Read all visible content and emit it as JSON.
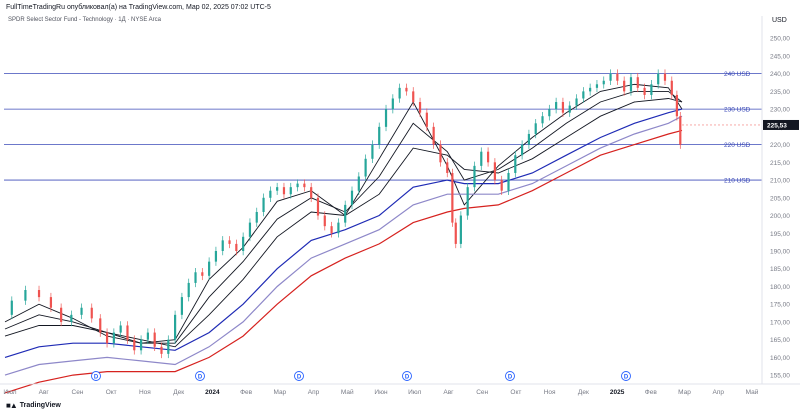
{
  "header": {
    "published_text": "FullTimeTradingRu опубликовал(а) на TradingView.com, Мар 02, 2025 07:02 UTC-5"
  },
  "chart_data": {
    "type": "line",
    "title": "SPDR Select Sector Fund - Technology · 1Д · NYSE Arca",
    "currency_label": "USD",
    "ylim": [
      152.5,
      254
    ],
    "yticks": [
      155,
      160,
      165,
      170,
      175,
      180,
      185,
      190,
      195,
      200,
      205,
      210,
      215,
      220,
      225,
      230,
      235,
      240,
      245,
      250
    ],
    "x_tick_labels": [
      "Июл",
      "Авг",
      "Сен",
      "Окт",
      "Ноя",
      "Дек",
      "2024",
      "Фев",
      "Мар",
      "Апр",
      "Май",
      "Июн",
      "Июл",
      "Авг",
      "Сен",
      "Окт",
      "Ноя",
      "Дек",
      "2025",
      "Фев",
      "Мар",
      "Апр",
      "Май"
    ],
    "event_markers": [
      "D",
      "D",
      "D",
      "D",
      "D",
      "D"
    ],
    "horizontal_levels": [
      {
        "label": "240 USD",
        "value": 240
      },
      {
        "label": "230 USD",
        "value": 230
      },
      {
        "label": "220 USD",
        "value": 220
      },
      {
        "label": "210 USD",
        "value": 210
      }
    ],
    "last_price": {
      "label": "225,53",
      "value": 225.53
    },
    "price_path": [
      [
        0,
        172
      ],
      [
        4,
        176
      ],
      [
        8,
        179
      ],
      [
        12,
        177
      ],
      [
        15,
        174
      ],
      [
        18,
        170
      ],
      [
        21,
        172
      ],
      [
        24,
        174
      ],
      [
        27,
        171
      ],
      [
        29,
        167
      ],
      [
        31,
        164
      ],
      [
        33,
        167
      ],
      [
        35,
        169
      ],
      [
        37,
        165
      ],
      [
        39,
        162
      ],
      [
        41,
        165
      ],
      [
        43,
        167
      ],
      [
        45,
        163
      ],
      [
        47,
        161
      ],
      [
        49,
        165
      ],
      [
        51,
        172
      ],
      [
        53,
        177
      ],
      [
        55,
        181
      ],
      [
        57,
        184
      ],
      [
        59,
        183
      ],
      [
        61,
        187
      ],
      [
        63,
        190
      ],
      [
        65,
        193
      ],
      [
        67,
        192
      ],
      [
        69,
        190
      ],
      [
        71,
        194
      ],
      [
        73,
        198
      ],
      [
        75,
        201
      ],
      [
        77,
        205
      ],
      [
        79,
        207
      ],
      [
        81,
        208
      ],
      [
        83,
        206
      ],
      [
        85,
        208
      ],
      [
        87,
        209
      ],
      [
        89,
        208
      ],
      [
        91,
        205
      ],
      [
        93,
        200
      ],
      [
        95,
        197
      ],
      [
        97,
        195
      ],
      [
        99,
        198
      ],
      [
        101,
        203
      ],
      [
        103,
        207
      ],
      [
        105,
        211
      ],
      [
        107,
        216
      ],
      [
        109,
        220
      ],
      [
        111,
        225
      ],
      [
        113,
        230
      ],
      [
        115,
        233
      ],
      [
        117,
        236
      ],
      [
        119,
        235
      ],
      [
        121,
        232
      ],
      [
        123,
        229
      ],
      [
        125,
        225
      ],
      [
        127,
        220
      ],
      [
        129,
        215
      ],
      [
        131,
        212
      ],
      [
        132,
        198
      ],
      [
        133,
        192
      ],
      [
        135,
        200
      ],
      [
        137,
        208
      ],
      [
        139,
        214
      ],
      [
        141,
        218
      ],
      [
        143,
        215
      ],
      [
        145,
        210
      ],
      [
        147,
        207
      ],
      [
        149,
        212
      ],
      [
        151,
        217
      ],
      [
        153,
        220
      ],
      [
        155,
        223
      ],
      [
        157,
        226
      ],
      [
        159,
        228
      ],
      [
        161,
        230
      ],
      [
        163,
        232
      ],
      [
        165,
        229
      ],
      [
        167,
        231
      ],
      [
        169,
        233
      ],
      [
        171,
        235
      ],
      [
        173,
        236
      ],
      [
        175,
        237
      ],
      [
        177,
        238
      ],
      [
        179,
        240
      ],
      [
        181,
        238
      ],
      [
        183,
        235
      ],
      [
        185,
        239
      ],
      [
        187,
        236
      ],
      [
        189,
        234
      ],
      [
        191,
        237
      ],
      [
        193,
        240
      ],
      [
        195,
        238
      ],
      [
        197,
        234
      ],
      [
        198,
        228
      ],
      [
        199,
        220
      ]
    ],
    "indicators": [
      {
        "name": "",
        "color": "#131722",
        "values": [
          [
            0,
            170
          ],
          [
            10,
            175
          ],
          [
            20,
            171
          ],
          [
            30,
            166
          ],
          [
            40,
            164
          ],
          [
            50,
            165
          ],
          [
            60,
            182
          ],
          [
            70,
            191
          ],
          [
            80,
            204
          ],
          [
            90,
            207
          ],
          [
            100,
            200
          ],
          [
            110,
            216
          ],
          [
            120,
            232
          ],
          [
            130,
            214
          ],
          [
            135,
            203
          ],
          [
            145,
            214
          ],
          [
            155,
            222
          ],
          [
            165,
            229
          ],
          [
            175,
            235
          ],
          [
            185,
            237
          ],
          [
            195,
            236
          ],
          [
            199,
            230
          ]
        ]
      },
      {
        "name": "",
        "color": "#131722",
        "values": [
          [
            0,
            168
          ],
          [
            10,
            172
          ],
          [
            20,
            170
          ],
          [
            30,
            167
          ],
          [
            40,
            164
          ],
          [
            50,
            164
          ],
          [
            60,
            177
          ],
          [
            70,
            187
          ],
          [
            80,
            199
          ],
          [
            90,
            205
          ],
          [
            100,
            201
          ],
          [
            110,
            211
          ],
          [
            120,
            226
          ],
          [
            130,
            218
          ],
          [
            135,
            210
          ],
          [
            145,
            213
          ],
          [
            155,
            219
          ],
          [
            165,
            226
          ],
          [
            175,
            232
          ],
          [
            185,
            235
          ],
          [
            195,
            235
          ],
          [
            199,
            232
          ]
        ]
      },
      {
        "name": "",
        "color": "#131722",
        "values": [
          [
            0,
            166
          ],
          [
            10,
            169
          ],
          [
            20,
            169
          ],
          [
            30,
            167
          ],
          [
            40,
            165
          ],
          [
            50,
            163
          ],
          [
            60,
            172
          ],
          [
            70,
            182
          ],
          [
            80,
            194
          ],
          [
            90,
            201
          ],
          [
            100,
            200
          ],
          [
            110,
            206
          ],
          [
            120,
            219
          ],
          [
            130,
            217
          ],
          [
            135,
            213
          ],
          [
            145,
            212
          ],
          [
            155,
            216
          ],
          [
            165,
            222
          ],
          [
            175,
            228
          ],
          [
            185,
            232
          ],
          [
            195,
            233
          ],
          [
            199,
            232
          ]
        ]
      },
      {
        "name": "",
        "color": "#1f2bb5",
        "values": [
          [
            0,
            160
          ],
          [
            10,
            163
          ],
          [
            20,
            164
          ],
          [
            30,
            164
          ],
          [
            40,
            163
          ],
          [
            50,
            162
          ],
          [
            60,
            167
          ],
          [
            70,
            175
          ],
          [
            80,
            185
          ],
          [
            90,
            193
          ],
          [
            100,
            196
          ],
          [
            110,
            200
          ],
          [
            120,
            208
          ],
          [
            130,
            210
          ],
          [
            135,
            209
          ],
          [
            145,
            209
          ],
          [
            155,
            212
          ],
          [
            165,
            217
          ],
          [
            175,
            222
          ],
          [
            185,
            226
          ],
          [
            195,
            229
          ],
          [
            199,
            230
          ]
        ]
      },
      {
        "name": "",
        "color": "#8e88c9",
        "values": [
          [
            0,
            155
          ],
          [
            10,
            158
          ],
          [
            20,
            159
          ],
          [
            30,
            160
          ],
          [
            40,
            159
          ],
          [
            50,
            158
          ],
          [
            60,
            163
          ],
          [
            70,
            170
          ],
          [
            80,
            180
          ],
          [
            90,
            188
          ],
          [
            100,
            192
          ],
          [
            110,
            196
          ],
          [
            120,
            203
          ],
          [
            130,
            206
          ],
          [
            135,
            206
          ],
          [
            145,
            206
          ],
          [
            155,
            209
          ],
          [
            165,
            214
          ],
          [
            175,
            219
          ],
          [
            185,
            223
          ],
          [
            195,
            226
          ],
          [
            199,
            228
          ]
        ]
      },
      {
        "name": "",
        "color": "#d6221f",
        "values": [
          [
            0,
            150
          ],
          [
            10,
            153
          ],
          [
            20,
            155
          ],
          [
            30,
            156
          ],
          [
            40,
            156
          ],
          [
            50,
            156
          ],
          [
            60,
            160
          ],
          [
            70,
            166
          ],
          [
            80,
            175
          ],
          [
            90,
            183
          ],
          [
            100,
            188
          ],
          [
            110,
            192
          ],
          [
            120,
            198
          ],
          [
            130,
            201
          ],
          [
            135,
            202
          ],
          [
            145,
            203
          ],
          [
            155,
            207
          ],
          [
            165,
            212
          ],
          [
            175,
            217
          ],
          [
            185,
            220
          ],
          [
            195,
            223
          ],
          [
            199,
            224
          ]
        ]
      }
    ],
    "grid": false,
    "legend": "none"
  },
  "footer": {
    "brand_icon": "tradingview-logo-icon",
    "brand_text": "TradingView"
  }
}
